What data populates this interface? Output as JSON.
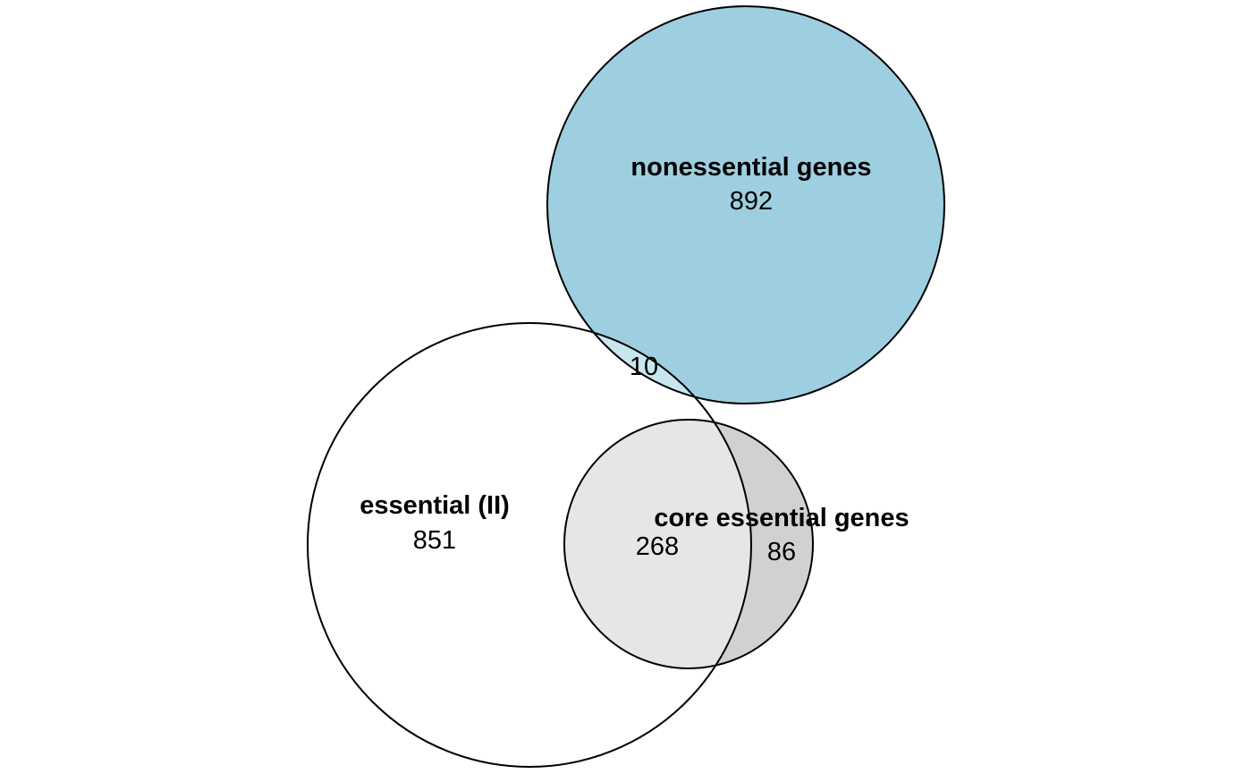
{
  "diagram": {
    "type": "venn",
    "sets": [
      {
        "id": "nonessential",
        "label": "nonessential genes",
        "count": "892",
        "fill": "#9ecfe0"
      },
      {
        "id": "essential",
        "label": "essential (II)",
        "count": "851",
        "fill": "#ffffff"
      },
      {
        "id": "core",
        "label": "core essential genes",
        "count": "86",
        "fill": "#d1d1d1"
      }
    ],
    "intersections": [
      {
        "sets": [
          "nonessential",
          "essential"
        ],
        "count": "10",
        "fill": "#c8e6ee"
      },
      {
        "sets": [
          "essential",
          "core"
        ],
        "count": "268",
        "fill": "#e6e6e6"
      }
    ],
    "stroke_color": "#000000"
  }
}
